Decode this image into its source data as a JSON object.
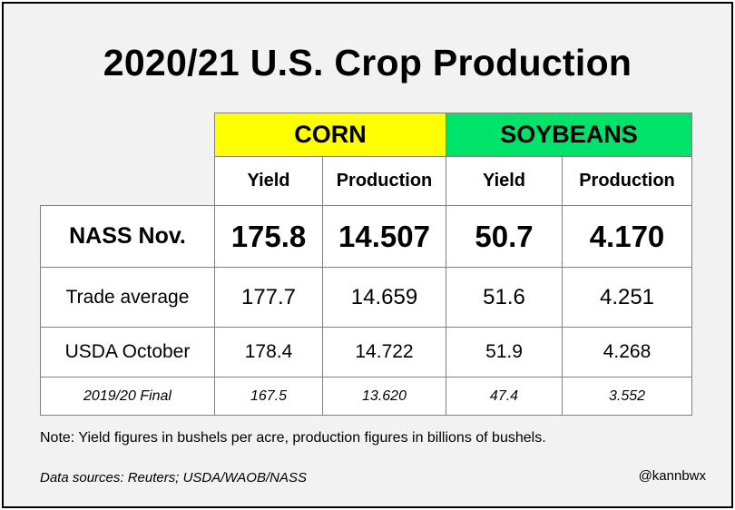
{
  "title": "2020/21 U.S. Crop Production",
  "chart_data": {
    "type": "table",
    "title": "2020/21 U.S. Crop Production",
    "groups": [
      {
        "name": "CORN",
        "color": "#ffff00",
        "columns": [
          "Yield",
          "Production"
        ]
      },
      {
        "name": "SOYBEANS",
        "color": "#00e36b",
        "columns": [
          "Yield",
          "Production"
        ]
      }
    ],
    "rows": [
      {
        "label": "NASS Nov.",
        "values": [
          "175.8",
          "14.507",
          "50.7",
          "4.170"
        ],
        "style": "bold"
      },
      {
        "label": "Trade average",
        "values": [
          "177.7",
          "14.659",
          "51.6",
          "4.251"
        ],
        "style": "normal"
      },
      {
        "label": "USDA October",
        "values": [
          "178.4",
          "14.722",
          "51.9",
          "4.268"
        ],
        "style": "normal"
      },
      {
        "label": "2019/20 Final",
        "values": [
          "167.5",
          "13.620",
          "47.4",
          "3.552"
        ],
        "style": "italic"
      }
    ]
  },
  "note": "Note: Yield figures in bushels per acre, production figures in billions of bushels.",
  "sources": "Data sources: Reuters; USDA/WAOB/NASS",
  "handle": "@kannbwx"
}
